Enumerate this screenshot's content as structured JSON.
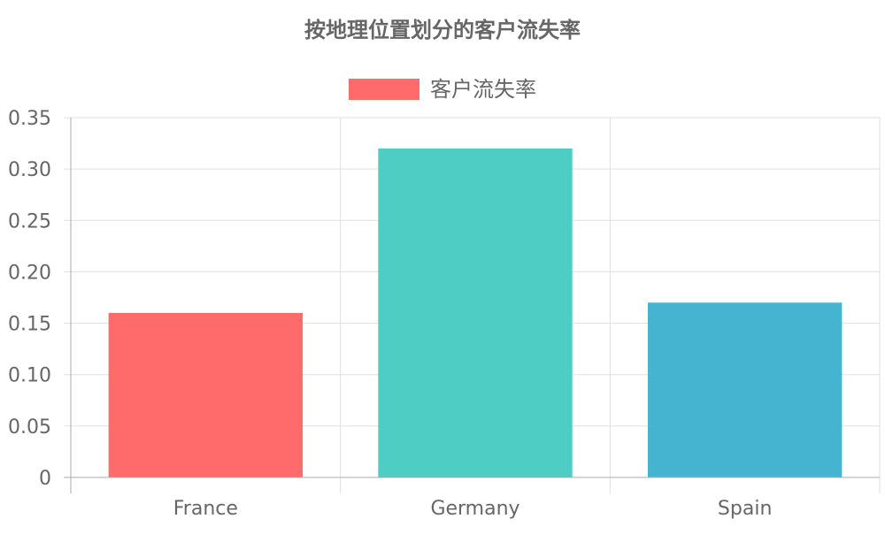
{
  "chart_data": {
    "type": "bar",
    "title": "按地理位置划分的客户流失率",
    "categories": [
      "France",
      "Germany",
      "Spain"
    ],
    "series": [
      {
        "name": "客户流失率",
        "values": [
          0.16,
          0.32,
          0.17
        ]
      }
    ],
    "bar_colors": [
      "#FF6B6B",
      "#4ECDC4",
      "#45B4D0"
    ],
    "legend_color": "#FF6B6B",
    "ylim": [
      0,
      0.35
    ],
    "yticks": [
      "0",
      "0.05",
      "0.10",
      "0.15",
      "0.20",
      "0.25",
      "0.30",
      "0.35"
    ],
    "xlabel": "",
    "ylabel": "",
    "grid": true,
    "legend_position": "top-center"
  }
}
